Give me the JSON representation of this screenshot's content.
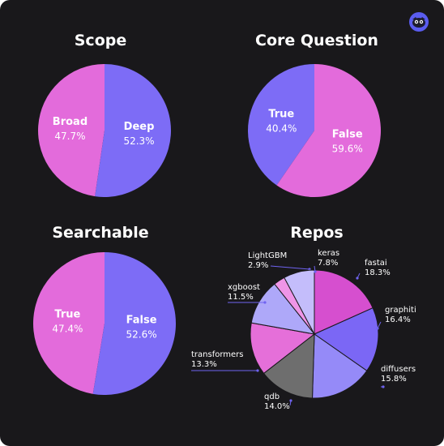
{
  "colors": {
    "pink": "#e36bdb",
    "purple": "#7d6cf6",
    "background": "#19181b",
    "leader": "#6f63f0"
  },
  "logo": {
    "icon": "mascot-logo-icon"
  },
  "chart_data": [
    {
      "type": "pie",
      "title": "Scope",
      "slices": [
        {
          "label": "Broad",
          "value": 47.7,
          "pct": "47.7%",
          "color": "#e36bdb"
        },
        {
          "label": "Deep",
          "value": 52.3,
          "pct": "52.3%",
          "color": "#7d6cf6"
        }
      ]
    },
    {
      "type": "pie",
      "title": "Core Question",
      "slices": [
        {
          "label": "True",
          "value": 40.4,
          "pct": "40.4%",
          "color": "#7d6cf6"
        },
        {
          "label": "False",
          "value": 59.6,
          "pct": "59.6%",
          "color": "#e36bdb"
        }
      ]
    },
    {
      "type": "pie",
      "title": "Searchable",
      "slices": [
        {
          "label": "True",
          "value": 47.4,
          "pct": "47.4%",
          "color": "#e36bdb"
        },
        {
          "label": "False",
          "value": 52.6,
          "pct": "52.6%",
          "color": "#7d6cf6"
        }
      ]
    },
    {
      "type": "pie",
      "title": "Repos",
      "slices": [
        {
          "label": "fastai",
          "value": 18.3,
          "pct": "18.3%",
          "color": "#d64fcf"
        },
        {
          "label": "graphiti",
          "value": 16.4,
          "pct": "16.4%",
          "color": "#7b67f5"
        },
        {
          "label": "diffusers",
          "value": 15.8,
          "pct": "15.8%",
          "color": "#958af8"
        },
        {
          "label": "qdb",
          "value": 14.0,
          "pct": "14.0%",
          "color": "#6e6e6e"
        },
        {
          "label": "transformers",
          "value": 13.3,
          "pct": "13.3%",
          "color": "#e56fd9"
        },
        {
          "label": "xgboost",
          "value": 11.5,
          "pct": "11.5%",
          "color": "#aea8f9"
        },
        {
          "label": "LightGBM",
          "value": 2.9,
          "pct": "2.9%",
          "color": "#ef95e7"
        },
        {
          "label": "keras",
          "value": 7.8,
          "pct": "7.8%",
          "color": "#c4bdfb"
        }
      ]
    }
  ]
}
